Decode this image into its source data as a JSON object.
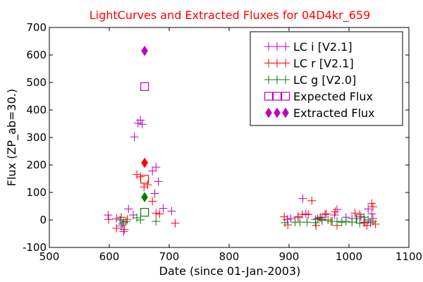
{
  "chart_data": {
    "type": "scatter",
    "title": "LightCurves and Extracted Fluxes for 04D4kr_659",
    "xlabel": "Date (since 01-Jan-2003)",
    "ylabel": "Flux (ZP_ab=30.)",
    "xlim": [
      500,
      1100
    ],
    "ylim": [
      -100,
      700
    ],
    "x_ticks": [
      "500",
      "600",
      "700",
      "800",
      "900",
      "1000",
      "1100"
    ],
    "y_ticks": [
      "-100",
      "0",
      "100",
      "200",
      "300",
      "400",
      "500",
      "600",
      "700"
    ],
    "grid": false,
    "legend_position": "top-right",
    "colors": {
      "title": "#ff0000",
      "i": "#bf00bf",
      "r": "#ff0000",
      "g": "#008000"
    },
    "series": [
      {
        "name": "LC i [V2.1]",
        "marker": "plus",
        "color": "#bf00bf",
        "points": [
          [
            598,
            18
          ],
          [
            620,
            -22
          ],
          [
            624,
            -42
          ],
          [
            632,
            40
          ],
          [
            642,
            302
          ],
          [
            648,
            352
          ],
          [
            652,
            363
          ],
          [
            655,
            348
          ],
          [
            672,
            178
          ],
          [
            676,
            96
          ],
          [
            678,
            192
          ],
          [
            682,
            140
          ],
          [
            690,
            42
          ],
          [
            704,
            32
          ],
          [
            624,
            -8
          ],
          [
            612,
            5
          ],
          [
            640,
            18
          ],
          [
            897,
            2
          ],
          [
            903,
            5
          ],
          [
            915,
            12
          ],
          [
            923,
            78
          ],
          [
            928,
            22
          ],
          [
            944,
            2
          ],
          [
            952,
            10
          ],
          [
            955,
            -2
          ],
          [
            960,
            20
          ],
          [
            976,
            18
          ],
          [
            980,
            38
          ],
          [
            995,
            10
          ],
          [
            1005,
            5
          ],
          [
            1013,
            5
          ],
          [
            1020,
            12
          ],
          [
            1027,
            -8
          ],
          [
            1032,
            40
          ],
          [
            1036,
            -10
          ],
          [
            1038,
            22
          ],
          [
            1040,
            5
          ]
        ]
      },
      {
        "name": "LC r [V2.1]",
        "marker": "plus",
        "color": "#ff0000",
        "points": [
          [
            599,
            2
          ],
          [
            612,
            -30
          ],
          [
            620,
            10
          ],
          [
            625,
            -35
          ],
          [
            630,
            2
          ],
          [
            646,
            165
          ],
          [
            652,
            157
          ],
          [
            658,
            120
          ],
          [
            664,
            128
          ],
          [
            672,
            68
          ],
          [
            678,
            25
          ],
          [
            684,
            22
          ],
          [
            710,
            -12
          ],
          [
            892,
            12
          ],
          [
            898,
            -18
          ],
          [
            915,
            10
          ],
          [
            922,
            20
          ],
          [
            932,
            20
          ],
          [
            938,
            70
          ],
          [
            945,
            -20
          ],
          [
            952,
            8
          ],
          [
            962,
            22
          ],
          [
            970,
            -5
          ],
          [
            977,
            30
          ],
          [
            980,
            -20
          ],
          [
            1010,
            25
          ],
          [
            1018,
            20
          ],
          [
            1025,
            -10
          ],
          [
            1030,
            -20
          ],
          [
            1038,
            60
          ],
          [
            1040,
            48
          ],
          [
            1044,
            -15
          ]
        ]
      },
      {
        "name": "LC g [V2.0]",
        "marker": "plus",
        "color": "#008000",
        "points": [
          [
            618,
            0
          ],
          [
            622,
            -15
          ],
          [
            628,
            -5
          ],
          [
            646,
            8
          ],
          [
            652,
            0
          ],
          [
            678,
            -5
          ],
          [
            893,
            -10
          ],
          [
            910,
            -8
          ],
          [
            918,
            -8
          ],
          [
            930,
            -8
          ],
          [
            944,
            -10
          ],
          [
            948,
            5
          ],
          [
            955,
            2
          ],
          [
            965,
            0
          ],
          [
            972,
            -5
          ],
          [
            980,
            -5
          ],
          [
            988,
            -8
          ],
          [
            995,
            -5
          ],
          [
            1005,
            -8
          ],
          [
            1012,
            5
          ],
          [
            1018,
            -12
          ],
          [
            1025,
            10
          ],
          [
            1032,
            0
          ],
          [
            1040,
            -5
          ]
        ]
      },
      {
        "name": "Expected Flux",
        "marker": "square",
        "color": "#bf00bf",
        "points": [
          [
            659,
            485
          ],
          [
            659,
            148
          ],
          [
            659,
            28
          ]
        ],
        "point_colors": [
          "#bf00bf",
          "#ff0000",
          "#008000"
        ]
      },
      {
        "name": "Extracted Flux",
        "marker": "diamond",
        "color": "#bf00bf",
        "points": [
          [
            659,
            615
          ],
          [
            659,
            208
          ],
          [
            659,
            83
          ]
        ],
        "point_colors": [
          "#bf00bf",
          "#ff0000",
          "#008000"
        ]
      }
    ]
  }
}
